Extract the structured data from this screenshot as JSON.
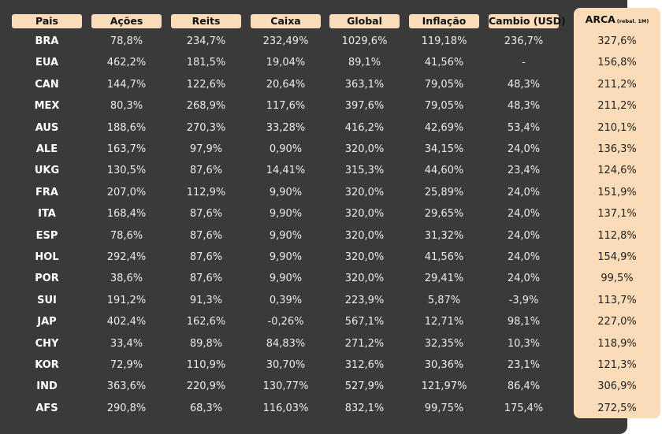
{
  "colors": {
    "panel": "#3a3a3a",
    "accent": "#fbdcb8",
    "text_light": "#eaeaea",
    "text_dark": "#222222"
  },
  "headers": {
    "pais": "Pais",
    "acoes": "Ações",
    "reits": "Reits",
    "caixa": "Caixa",
    "global": "Global",
    "inflacao": "Inflação",
    "cambio": "Cambio (USD)",
    "arca": "ARCA",
    "arca_sub": "(rebal. 1M)"
  },
  "rows": [
    [
      "BRA",
      "78,8%",
      "234,7%",
      "232,49%",
      "1029,6%",
      "119,18%",
      "236,7%",
      "327,6%"
    ],
    [
      "EUA",
      "462,2%",
      "181,5%",
      "19,04%",
      "89,1%",
      "41,56%",
      "-",
      "156,8%"
    ],
    [
      "CAN",
      "144,7%",
      "122,6%",
      "20,64%",
      "363,1%",
      "79,05%",
      "48,3%",
      "211,2%"
    ],
    [
      "MEX",
      "80,3%",
      "268,9%",
      "117,6%",
      "397,6%",
      "79,05%",
      "48,3%",
      "211,2%"
    ],
    [
      "AUS",
      "188,6%",
      "270,3%",
      "33,28%",
      "416,2%",
      "42,69%",
      "53,4%",
      "210,1%"
    ],
    [
      "ALE",
      "163,7%",
      "97,9%",
      "0,90%",
      "320,0%",
      "34,15%",
      "24,0%",
      "136,3%"
    ],
    [
      "UKG",
      "130,5%",
      "87,6%",
      "14,41%",
      "315,3%",
      "44,60%",
      "23,4%",
      "124,6%"
    ],
    [
      "FRA",
      "207,0%",
      "112,9%",
      "9,90%",
      "320,0%",
      "25,89%",
      "24,0%",
      "151,9%"
    ],
    [
      "ITA",
      "168,4%",
      "87,6%",
      "9,90%",
      "320,0%",
      "29,65%",
      "24,0%",
      "137,1%"
    ],
    [
      "ESP",
      "78,6%",
      "87,6%",
      "9,90%",
      "320,0%",
      "31,32%",
      "24,0%",
      "112,8%"
    ],
    [
      "HOL",
      "292,4%",
      "87,6%",
      "9,90%",
      "320,0%",
      "41,56%",
      "24,0%",
      "154,9%"
    ],
    [
      "POR",
      "38,6%",
      "87,6%",
      "9,90%",
      "320,0%",
      "29,41%",
      "24,0%",
      "99,5%"
    ],
    [
      "SUI",
      "191,2%",
      "91,3%",
      "0,39%",
      "223,9%",
      "5,87%",
      "-3,9%",
      "113,7%"
    ],
    [
      "JAP",
      "402,4%",
      "162,6%",
      "-0,26%",
      "567,1%",
      "12,71%",
      "98,1%",
      "227,0%"
    ],
    [
      "CHY",
      "33,4%",
      "89,8%",
      "84,83%",
      "271,2%",
      "32,35%",
      "10,3%",
      "118,9%"
    ],
    [
      "KOR",
      "72,9%",
      "110,9%",
      "30,70%",
      "312,6%",
      "30,36%",
      "23,1%",
      "121,3%"
    ],
    [
      "IND",
      "363,6%",
      "220,9%",
      "130,77%",
      "527,9%",
      "121,97%",
      "86,4%",
      "306,9%"
    ],
    [
      "AFS",
      "290,8%",
      "68,3%",
      "116,03%",
      "832,1%",
      "99,75%",
      "175,4%",
      "272,5%"
    ]
  ]
}
